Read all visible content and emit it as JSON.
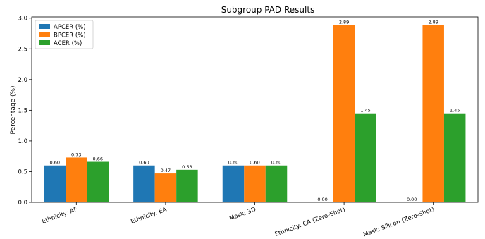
{
  "chart_data": {
    "type": "bar",
    "title": "Subgroup PAD Results",
    "xlabel": "",
    "ylabel": "Percentage (%)",
    "ylim": [
      0,
      3.02
    ],
    "yticks": [
      0.0,
      0.5,
      1.0,
      1.5,
      2.0,
      2.5,
      3.0
    ],
    "ytick_labels": [
      "0.0",
      "0.5",
      "1.0",
      "1.5",
      "2.0",
      "2.5",
      "3.0"
    ],
    "categories": [
      "Ethnicity: AF",
      "Ethnicity: EA",
      "Mask: 3D",
      "Ethnicity: CA (Zero-Shot)",
      "Mask: Silicon (Zero-Shot)"
    ],
    "series": [
      {
        "name": "APCER (%)",
        "color": "#1f77b4",
        "values": [
          0.6,
          0.6,
          0.6,
          0.0,
          0.0
        ],
        "labels": [
          "0.60",
          "0.60",
          "0.60",
          "0.00",
          "0.00"
        ]
      },
      {
        "name": "BPCER (%)",
        "color": "#ff7f0e",
        "values": [
          0.73,
          0.47,
          0.6,
          2.89,
          2.89
        ],
        "labels": [
          "0.73",
          "0.47",
          "0.60",
          "2.89",
          "2.89"
        ]
      },
      {
        "name": "ACER (%)",
        "color": "#2ca02c",
        "values": [
          0.66,
          0.53,
          0.6,
          1.45,
          1.45
        ],
        "labels": [
          "0.66",
          "0.53",
          "0.60",
          "1.45",
          "1.45"
        ]
      }
    ],
    "legend_position": "top-left",
    "grid": false
  }
}
